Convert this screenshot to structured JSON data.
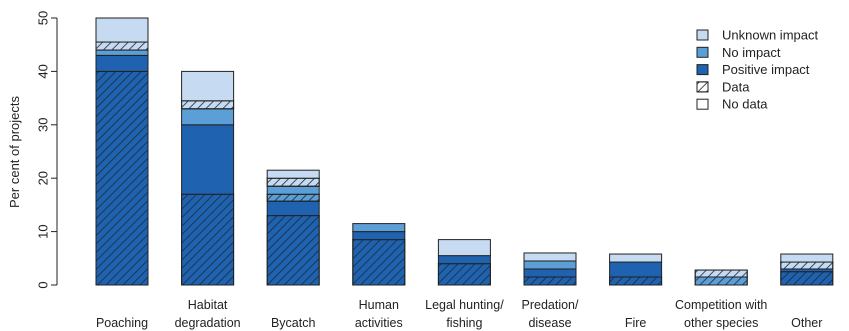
{
  "chart_data": {
    "type": "bar",
    "stacked": true,
    "title": "",
    "xlabel": "",
    "ylabel": "Per cent of projects",
    "ylim": [
      0,
      50
    ],
    "yticks": [
      0,
      10,
      20,
      30,
      40,
      50
    ],
    "grid": false,
    "legend_position": "top-right",
    "categories": [
      [
        "Poaching"
      ],
      [
        "Habitat",
        "degradation"
      ],
      [
        "Bycatch"
      ],
      [
        "Human",
        "activities"
      ],
      [
        "Legal hunting/",
        "fishing"
      ],
      [
        "Predation/",
        "disease"
      ],
      [
        "Fire"
      ],
      [
        "Competition with",
        "other species"
      ],
      [
        "Other"
      ]
    ],
    "series": [
      {
        "name": "Positive impact",
        "data_type": "Data",
        "values": [
          40,
          17,
          13,
          8.5,
          4,
          1.5,
          1.5,
          0,
          2.5
        ]
      },
      {
        "name": "Positive impact",
        "data_type": "No data",
        "values": [
          3,
          13,
          2.7,
          1.5,
          1.5,
          1.5,
          2.8,
          0,
          0.5
        ]
      },
      {
        "name": "No impact",
        "data_type": "Data",
        "values": [
          0,
          0,
          1.3,
          0,
          0,
          0,
          0,
          1.5,
          0
        ]
      },
      {
        "name": "No impact",
        "data_type": "No data",
        "values": [
          1,
          3,
          1.5,
          1.5,
          0,
          1.5,
          0,
          0,
          0
        ]
      },
      {
        "name": "Unknown impact",
        "data_type": "Data",
        "values": [
          1.5,
          1.5,
          1.5,
          0,
          0,
          0,
          0,
          1.3,
          1.3
        ]
      },
      {
        "name": "Unknown impact",
        "data_type": "No data",
        "values": [
          4.5,
          5.5,
          1.5,
          0,
          3,
          1.5,
          1.5,
          0,
          1.5
        ]
      }
    ],
    "legend": [
      {
        "label": "Unknown impact",
        "swatch": "unknown"
      },
      {
        "label": "No impact",
        "swatch": "noimpact"
      },
      {
        "label": "Positive impact",
        "swatch": "positive"
      },
      {
        "label": "Data",
        "swatch": "data"
      },
      {
        "label": "No data",
        "swatch": "nodata"
      }
    ],
    "colors": {
      "Unknown impact": "#c6dbf1",
      "No impact": "#5b9fd6",
      "Positive impact": "#1f63b0",
      "outline": "#222222",
      "hatch": "#1b2a3a"
    }
  }
}
